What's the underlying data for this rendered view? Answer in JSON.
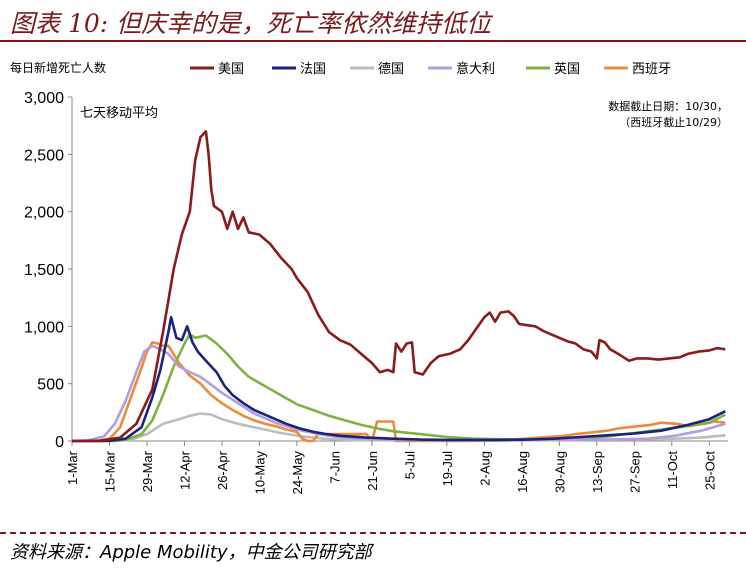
{
  "figure_title": "图表 10: 但庆幸的是，死亡率依然维持低位",
  "source": "资料来源：Apple Mobility，中金公司研究部",
  "chart_data": {
    "type": "line",
    "ylabel": "每日新增死亡人数",
    "subtitle": "七天移动平均",
    "note_line1": "数据截止日期：10/30，",
    "note_line2": "（西班牙截止10/29）",
    "ylim": [
      0,
      3000
    ],
    "yticks": [
      0,
      500,
      1000,
      1500,
      2000,
      2500,
      3000
    ],
    "ytick_labels": [
      "0",
      "500",
      "1,000",
      "1,500",
      "2,000",
      "2,500",
      "3,000"
    ],
    "xlim": [
      0,
      245
    ],
    "xticks": [
      0,
      14,
      28,
      42,
      56,
      70,
      84,
      98,
      112,
      126,
      140,
      154,
      168,
      182,
      196,
      210,
      224,
      238
    ],
    "xtick_labels": [
      "1-Mar",
      "15-Mar",
      "29-Mar",
      "12-Apr",
      "26-Apr",
      "10-May",
      "24-May",
      "7-Jun",
      "21-Jun",
      "5-Jul",
      "19-Jul",
      "2-Aug",
      "16-Aug",
      "30-Aug",
      "13-Sep",
      "27-Sep",
      "11-Oct",
      "25-Oct"
    ],
    "series": [
      {
        "name": "美国",
        "color": "#8b1a1a",
        "points": [
          [
            0,
            0
          ],
          [
            10,
            2
          ],
          [
            18,
            30
          ],
          [
            24,
            150
          ],
          [
            30,
            450
          ],
          [
            34,
            950
          ],
          [
            38,
            1500
          ],
          [
            41,
            1800
          ],
          [
            44,
            2000
          ],
          [
            46,
            2450
          ],
          [
            48,
            2650
          ],
          [
            50,
            2700
          ],
          [
            51,
            2500
          ],
          [
            52,
            2200
          ],
          [
            53,
            2050
          ],
          [
            56,
            2000
          ],
          [
            58,
            1850
          ],
          [
            60,
            2000
          ],
          [
            62,
            1850
          ],
          [
            64,
            1950
          ],
          [
            66,
            1820
          ],
          [
            70,
            1800
          ],
          [
            74,
            1720
          ],
          [
            78,
            1600
          ],
          [
            82,
            1500
          ],
          [
            84,
            1420
          ],
          [
            88,
            1300
          ],
          [
            92,
            1100
          ],
          [
            96,
            950
          ],
          [
            100,
            880
          ],
          [
            104,
            840
          ],
          [
            108,
            760
          ],
          [
            112,
            680
          ],
          [
            115,
            600
          ],
          [
            118,
            620
          ],
          [
            120,
            600
          ],
          [
            121,
            850
          ],
          [
            123,
            780
          ],
          [
            125,
            850
          ],
          [
            127,
            860
          ],
          [
            128,
            600
          ],
          [
            131,
            580
          ],
          [
            134,
            680
          ],
          [
            137,
            740
          ],
          [
            141,
            760
          ],
          [
            145,
            800
          ],
          [
            148,
            880
          ],
          [
            151,
            980
          ],
          [
            154,
            1080
          ],
          [
            156,
            1120
          ],
          [
            158,
            1040
          ],
          [
            160,
            1120
          ],
          [
            163,
            1130
          ],
          [
            165,
            1090
          ],
          [
            167,
            1020
          ],
          [
            170,
            1010
          ],
          [
            173,
            1000
          ],
          [
            176,
            960
          ],
          [
            179,
            930
          ],
          [
            182,
            900
          ],
          [
            185,
            870
          ],
          [
            188,
            850
          ],
          [
            191,
            800
          ],
          [
            194,
            780
          ],
          [
            196,
            720
          ],
          [
            197,
            880
          ],
          [
            199,
            860
          ],
          [
            201,
            800
          ],
          [
            204,
            760
          ],
          [
            208,
            700
          ],
          [
            211,
            720
          ],
          [
            215,
            720
          ],
          [
            219,
            710
          ],
          [
            223,
            720
          ],
          [
            227,
            730
          ],
          [
            230,
            760
          ],
          [
            234,
            780
          ],
          [
            238,
            790
          ],
          [
            241,
            810
          ],
          [
            244,
            800
          ]
        ]
      },
      {
        "name": "法国",
        "color": "#1a237e",
        "points": [
          [
            0,
            0
          ],
          [
            14,
            2
          ],
          [
            20,
            20
          ],
          [
            26,
            120
          ],
          [
            30,
            380
          ],
          [
            33,
            620
          ],
          [
            36,
            950
          ],
          [
            37,
            1080
          ],
          [
            39,
            900
          ],
          [
            41,
            880
          ],
          [
            43,
            1000
          ],
          [
            45,
            860
          ],
          [
            47,
            780
          ],
          [
            50,
            700
          ],
          [
            54,
            600
          ],
          [
            57,
            480
          ],
          [
            60,
            400
          ],
          [
            64,
            330
          ],
          [
            68,
            270
          ],
          [
            72,
            230
          ],
          [
            76,
            190
          ],
          [
            80,
            150
          ],
          [
            85,
            110
          ],
          [
            90,
            80
          ],
          [
            95,
            60
          ],
          [
            100,
            45
          ],
          [
            110,
            30
          ],
          [
            120,
            20
          ],
          [
            130,
            12
          ],
          [
            140,
            10
          ],
          [
            150,
            10
          ],
          [
            160,
            10
          ],
          [
            170,
            12
          ],
          [
            180,
            20
          ],
          [
            190,
            35
          ],
          [
            200,
            50
          ],
          [
            210,
            65
          ],
          [
            220,
            90
          ],
          [
            230,
            140
          ],
          [
            238,
            190
          ],
          [
            244,
            260
          ]
        ]
      },
      {
        "name": "德国",
        "color": "#bdbdbd",
        "points": [
          [
            0,
            0
          ],
          [
            15,
            1
          ],
          [
            22,
            10
          ],
          [
            28,
            60
          ],
          [
            34,
            150
          ],
          [
            40,
            190
          ],
          [
            44,
            220
          ],
          [
            48,
            240
          ],
          [
            52,
            230
          ],
          [
            56,
            190
          ],
          [
            62,
            150
          ],
          [
            70,
            110
          ],
          [
            78,
            70
          ],
          [
            86,
            40
          ],
          [
            94,
            20
          ],
          [
            104,
            10
          ],
          [
            120,
            5
          ],
          [
            140,
            5
          ],
          [
            160,
            5
          ],
          [
            180,
            8
          ],
          [
            200,
            12
          ],
          [
            215,
            15
          ],
          [
            225,
            20
          ],
          [
            235,
            30
          ],
          [
            244,
            50
          ]
        ]
      },
      {
        "name": "意大利",
        "color": "#b39ddb",
        "points": [
          [
            0,
            0
          ],
          [
            6,
            5
          ],
          [
            12,
            40
          ],
          [
            16,
            150
          ],
          [
            20,
            350
          ],
          [
            24,
            600
          ],
          [
            27,
            780
          ],
          [
            30,
            830
          ],
          [
            33,
            800
          ],
          [
            36,
            760
          ],
          [
            40,
            650
          ],
          [
            44,
            600
          ],
          [
            48,
            560
          ],
          [
            52,
            490
          ],
          [
            56,
            420
          ],
          [
            60,
            360
          ],
          [
            64,
            300
          ],
          [
            68,
            240
          ],
          [
            72,
            200
          ],
          [
            76,
            160
          ],
          [
            80,
            130
          ],
          [
            86,
            90
          ],
          [
            92,
            60
          ],
          [
            98,
            40
          ],
          [
            108,
            20
          ],
          [
            120,
            10
          ],
          [
            140,
            6
          ],
          [
            160,
            6
          ],
          [
            180,
            8
          ],
          [
            200,
            12
          ],
          [
            215,
            20
          ],
          [
            225,
            45
          ],
          [
            235,
            90
          ],
          [
            244,
            150
          ]
        ]
      },
      {
        "name": "英国",
        "color": "#7cb342",
        "points": [
          [
            0,
            0
          ],
          [
            14,
            1
          ],
          [
            20,
            10
          ],
          [
            26,
            60
          ],
          [
            30,
            180
          ],
          [
            34,
            400
          ],
          [
            38,
            650
          ],
          [
            42,
            850
          ],
          [
            44,
            930
          ],
          [
            46,
            900
          ],
          [
            50,
            920
          ],
          [
            54,
            850
          ],
          [
            58,
            760
          ],
          [
            62,
            650
          ],
          [
            66,
            560
          ],
          [
            72,
            480
          ],
          [
            78,
            400
          ],
          [
            84,
            320
          ],
          [
            90,
            270
          ],
          [
            96,
            220
          ],
          [
            102,
            180
          ],
          [
            108,
            140
          ],
          [
            114,
            110
          ],
          [
            120,
            85
          ],
          [
            130,
            60
          ],
          [
            140,
            35
          ],
          [
            150,
            20
          ],
          [
            160,
            15
          ],
          [
            170,
            15
          ],
          [
            180,
            15
          ],
          [
            190,
            20
          ],
          [
            200,
            40
          ],
          [
            210,
            70
          ],
          [
            220,
            100
          ],
          [
            230,
            130
          ],
          [
            238,
            160
          ],
          [
            244,
            230
          ]
        ]
      },
      {
        "name": "西班牙",
        "color": "#ef8a3a",
        "points": [
          [
            0,
            0
          ],
          [
            10,
            2
          ],
          [
            14,
            20
          ],
          [
            18,
            120
          ],
          [
            22,
            380
          ],
          [
            26,
            640
          ],
          [
            28,
            780
          ],
          [
            30,
            860
          ],
          [
            32,
            850
          ],
          [
            34,
            830
          ],
          [
            36,
            830
          ],
          [
            40,
            680
          ],
          [
            44,
            570
          ],
          [
            48,
            500
          ],
          [
            52,
            400
          ],
          [
            56,
            330
          ],
          [
            60,
            270
          ],
          [
            64,
            220
          ],
          [
            68,
            180
          ],
          [
            72,
            150
          ],
          [
            76,
            130
          ],
          [
            80,
            100
          ],
          [
            84,
            80
          ],
          [
            86,
            20
          ],
          [
            88,
            0
          ],
          [
            90,
            0
          ],
          [
            92,
            60
          ],
          [
            100,
            60
          ],
          [
            110,
            60
          ],
          [
            112,
            0
          ],
          [
            114,
            170
          ],
          [
            120,
            170
          ],
          [
            121,
            0
          ],
          [
            130,
            0
          ],
          [
            140,
            0
          ],
          [
            150,
            2
          ],
          [
            160,
            5
          ],
          [
            166,
            15
          ],
          [
            172,
            25
          ],
          [
            178,
            35
          ],
          [
            184,
            45
          ],
          [
            188,
            60
          ],
          [
            192,
            70
          ],
          [
            196,
            80
          ],
          [
            200,
            90
          ],
          [
            204,
            110
          ],
          [
            208,
            120
          ],
          [
            212,
            130
          ],
          [
            216,
            140
          ],
          [
            220,
            160
          ],
          [
            226,
            150
          ],
          [
            230,
            130
          ],
          [
            236,
            150
          ],
          [
            240,
            170
          ],
          [
            244,
            160
          ]
        ]
      }
    ]
  }
}
